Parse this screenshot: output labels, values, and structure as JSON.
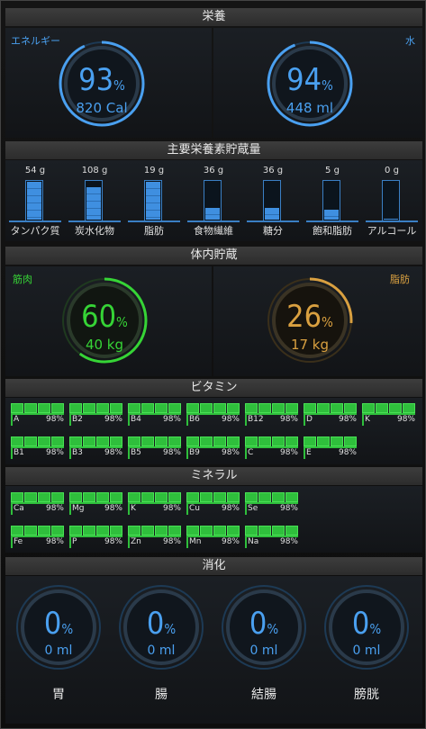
{
  "sections": {
    "nutrition": "栄養",
    "macros": "主要栄養素貯蔵量",
    "body": "体内貯蔵",
    "vitamins": "ビタミン",
    "minerals": "ミネラル",
    "digestion": "消化"
  },
  "nutrition": {
    "energy": {
      "label": "エネルギー",
      "percent_text": "93",
      "percent_sign": "%",
      "value_text": "820 Cal",
      "percent": 93
    },
    "water": {
      "label": "水",
      "percent_text": "94",
      "percent_sign": "%",
      "value_text": "448 ml",
      "percent": 94
    }
  },
  "macros": [
    {
      "label": "タンパク質",
      "value_text": "54 g",
      "fill": 1.0
    },
    {
      "label": "炭水化物",
      "value_text": "108 g",
      "fill": 0.85
    },
    {
      "label": "脂肪",
      "value_text": "19 g",
      "fill": 1.0
    },
    {
      "label": "食物繊維",
      "value_text": "36 g",
      "fill": 0.3
    },
    {
      "label": "糖分",
      "value_text": "36 g",
      "fill": 0.3
    },
    {
      "label": "飽和脂肪",
      "value_text": "5 g",
      "fill": 0.27
    },
    {
      "label": "アルコール",
      "value_text": "0 g",
      "fill": 0.0
    }
  ],
  "body": {
    "muscle": {
      "label": "筋肉",
      "percent_text": "60",
      "percent_sign": "%",
      "value_text": "40 kg",
      "percent": 60
    },
    "fat": {
      "label": "脂肪",
      "percent_text": "26",
      "percent_sign": "%",
      "value_text": "17 kg",
      "percent": 26
    }
  },
  "vitamins": [
    {
      "name": "A",
      "pct": "98%"
    },
    {
      "name": "B2",
      "pct": "98%"
    },
    {
      "name": "B4",
      "pct": "98%"
    },
    {
      "name": "B6",
      "pct": "98%"
    },
    {
      "name": "B12",
      "pct": "98%"
    },
    {
      "name": "D",
      "pct": "98%"
    },
    {
      "name": "K",
      "pct": "98%"
    },
    {
      "name": "B1",
      "pct": "98%"
    },
    {
      "name": "B3",
      "pct": "98%"
    },
    {
      "name": "B5",
      "pct": "98%"
    },
    {
      "name": "B9",
      "pct": "98%"
    },
    {
      "name": "C",
      "pct": "98%"
    },
    {
      "name": "E",
      "pct": "98%"
    }
  ],
  "minerals": [
    {
      "name": "Ca",
      "pct": "98%"
    },
    {
      "name": "Mg",
      "pct": "98%"
    },
    {
      "name": "K",
      "pct": "98%"
    },
    {
      "name": "Cu",
      "pct": "98%"
    },
    {
      "name": "Se",
      "pct": "98%"
    },
    {
      "name": "Fe",
      "pct": "98%"
    },
    {
      "name": "P",
      "pct": "98%"
    },
    {
      "name": "Zn",
      "pct": "98%"
    },
    {
      "name": "Mn",
      "pct": "98%"
    },
    {
      "name": "Na",
      "pct": "98%"
    }
  ],
  "digestion": [
    {
      "label": "胃",
      "percent_text": "0",
      "percent_sign": "%",
      "value_text": "0 ml"
    },
    {
      "label": "腸",
      "percent_text": "0",
      "percent_sign": "%",
      "value_text": "0 ml"
    },
    {
      "label": "結腸",
      "percent_text": "0",
      "percent_sign": "%",
      "value_text": "0 ml"
    },
    {
      "label": "膀胱",
      "percent_text": "0",
      "percent_sign": "%",
      "value_text": "0 ml"
    }
  ],
  "colors": {
    "blue": "#4aa0f0",
    "green": "#36d436",
    "orange": "#d9a040",
    "vitamin": "#2fbf3c"
  }
}
